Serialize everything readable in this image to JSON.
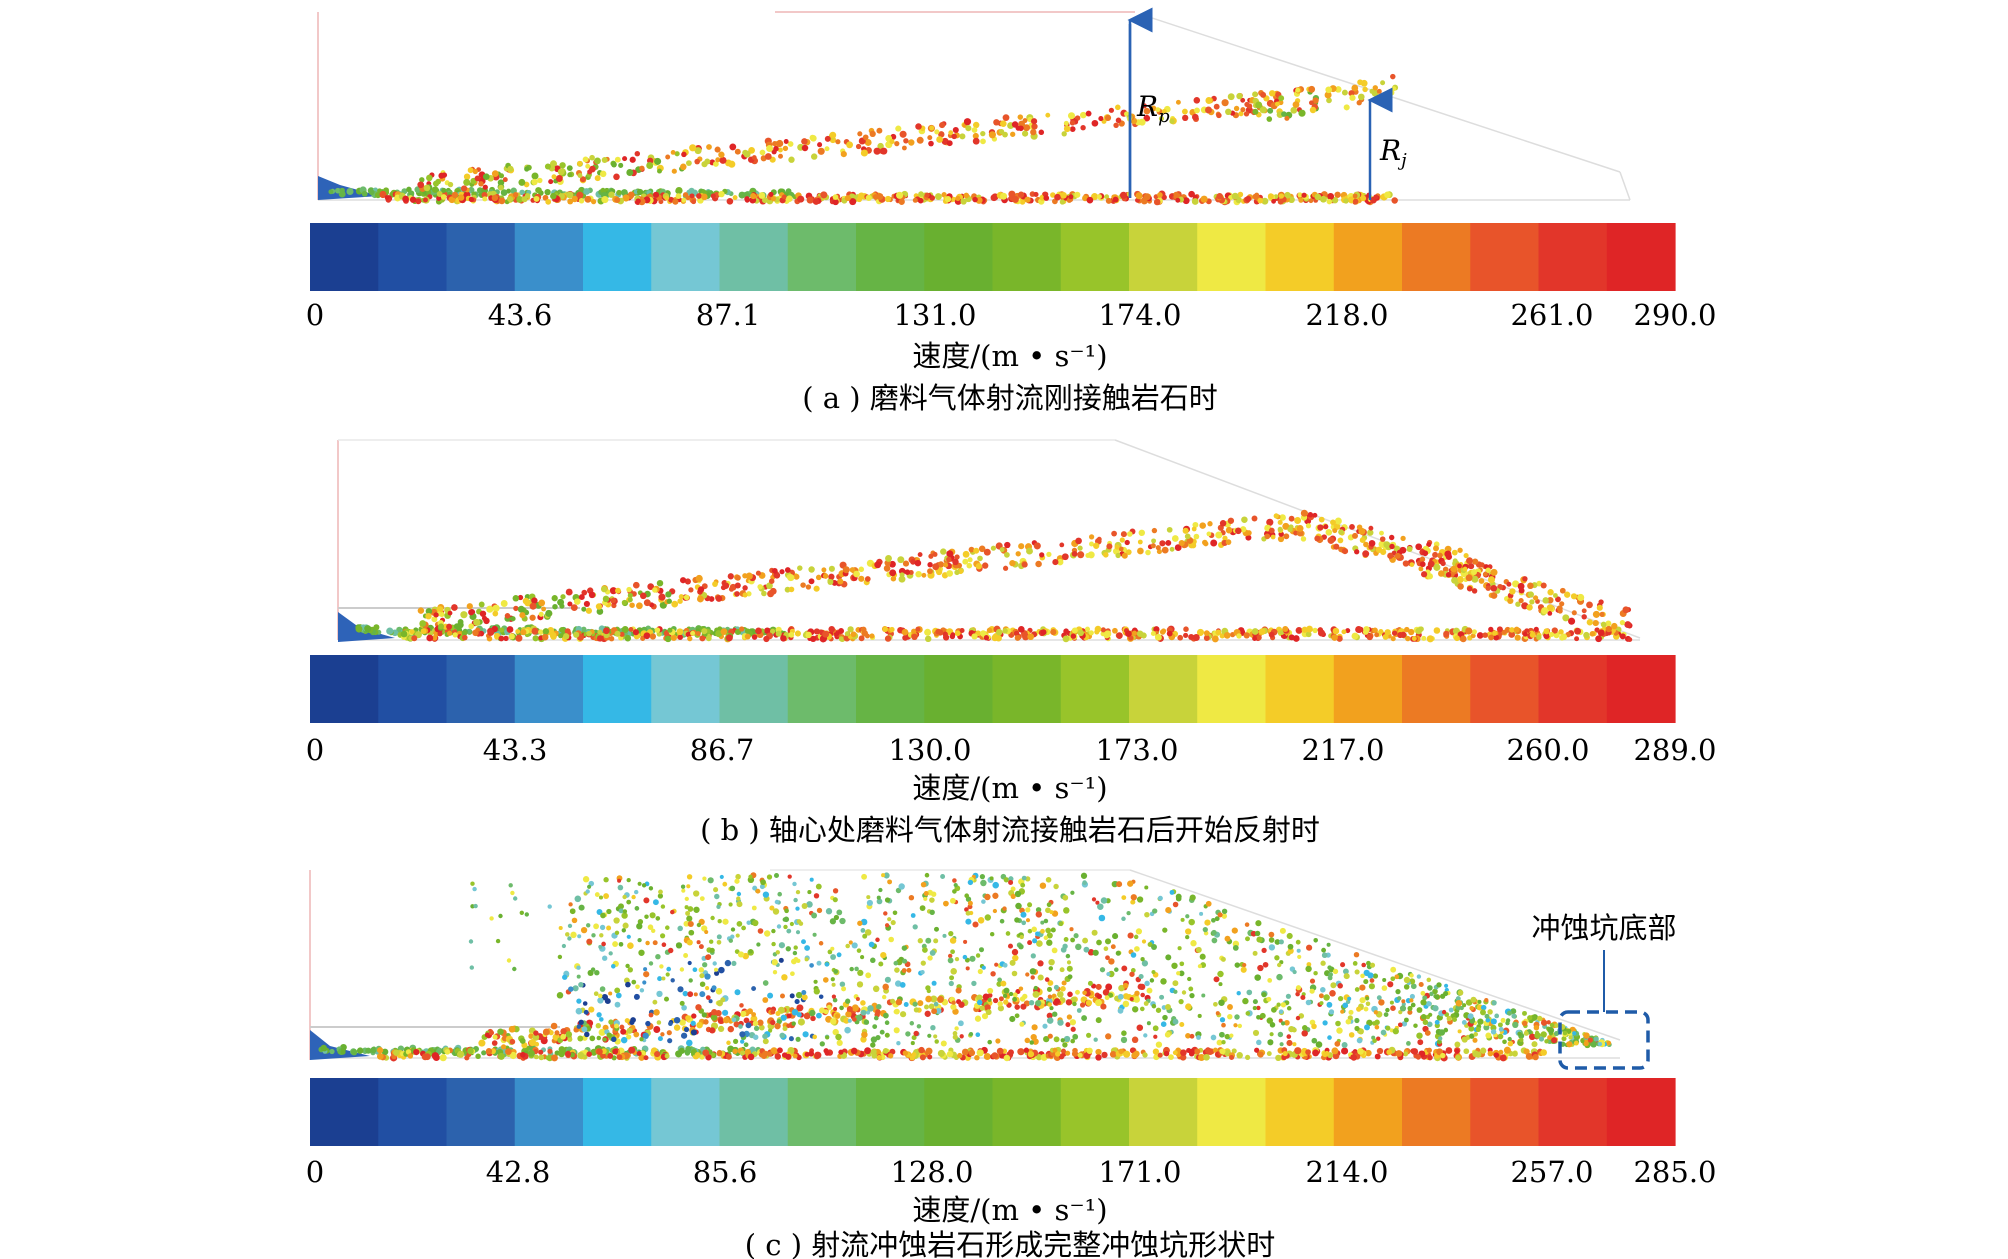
{
  "colorbar_colors": [
    "#1b3f91",
    "#214fa3",
    "#2c62ad",
    "#3a8fcb",
    "#35b8e6",
    "#75c7d4",
    "#6fbfa5",
    "#6dbb6b",
    "#66b445",
    "#69b030",
    "#79b62a",
    "#98c42a",
    "#c8d33a",
    "#efe944",
    "#f4cc28",
    "#f2a11e",
    "#ec7a23",
    "#e8542a",
    "#e2362a",
    "#df2526"
  ],
  "panels": [
    {
      "id": "a",
      "caption": "( a ) 磨料气体射流刚接触岩石时",
      "unit_label": "速度/(m • s⁻¹)",
      "tick_labels": [
        "0",
        "43.6",
        "87.1",
        "131.0",
        "174.0",
        "218.0",
        "261.0",
        "290.0"
      ],
      "annotations": {
        "rp_main": "R",
        "rp_sub": "p",
        "rj_main": "R",
        "rj_sub": "j"
      }
    },
    {
      "id": "b",
      "caption": "( b ) 轴心处磨料气体射流接触岩石后开始反射时",
      "unit_label": "速度/(m • s⁻¹)",
      "tick_labels": [
        "0",
        "43.3",
        "86.7",
        "130.0",
        "173.0",
        "217.0",
        "260.0",
        "289.0"
      ]
    },
    {
      "id": "c",
      "caption": "( c ) 射流冲蚀岩石形成完整冲蚀坑形状时",
      "unit_label": "速度/(m • s⁻¹)",
      "tick_labels": [
        "0",
        "42.8",
        "85.6",
        "128.0",
        "171.0",
        "214.0",
        "257.0",
        "285.0"
      ],
      "callout_label": "冲蚀坑底部"
    }
  ]
}
